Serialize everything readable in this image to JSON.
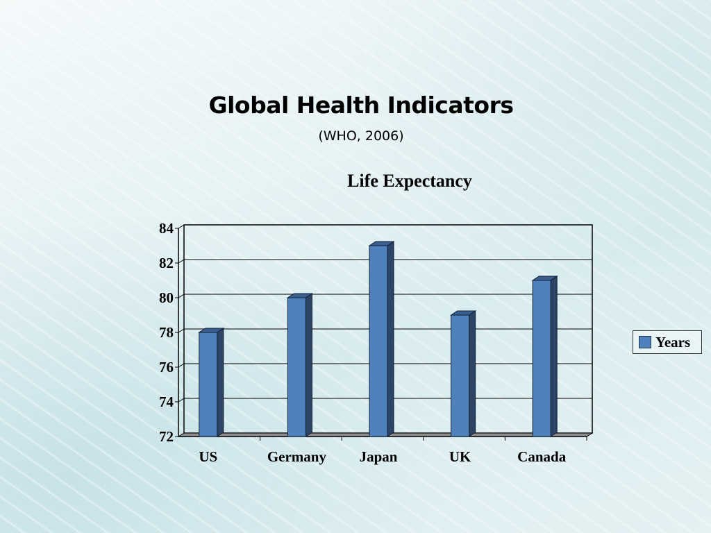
{
  "slide": {
    "title": "Global Health Indicators",
    "subtitle": "(WHO, 2006)"
  },
  "chart_data": {
    "type": "bar",
    "title": "Life Expectancy",
    "categories": [
      "US",
      "Germany",
      "Japan",
      "UK",
      "Canada"
    ],
    "series": [
      {
        "name": "Years",
        "values": [
          78,
          80,
          83,
          79,
          81
        ],
        "color": "#4f81bd"
      }
    ],
    "xlabel": "",
    "ylabel": "",
    "ylim": [
      72,
      84
    ],
    "yticks": [
      "72",
      "74",
      "76",
      "78",
      "80",
      "82",
      "84"
    ],
    "grid": true,
    "legend_position": "right",
    "style": "3d-column"
  }
}
